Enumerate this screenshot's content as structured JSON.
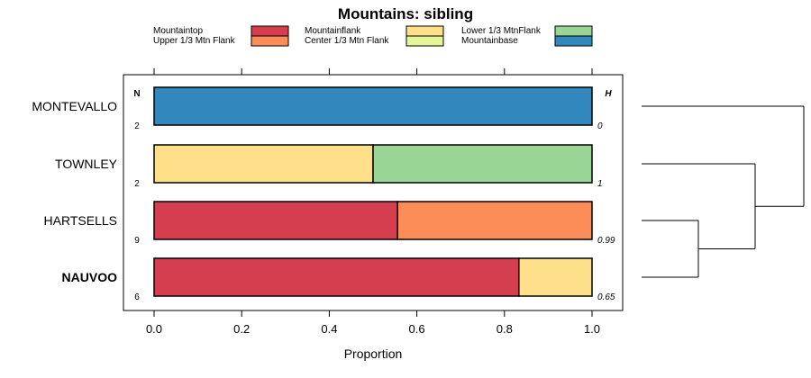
{
  "chart_data": {
    "type": "bar",
    "orientation": "horizontal",
    "stacked": true,
    "title": "Mountains: sibling",
    "xlabel": "Proportion",
    "ylabel": "",
    "xlim": [
      0,
      1
    ],
    "xticks": [
      "0.0",
      "0.2",
      "0.4",
      "0.6",
      "0.8",
      "1.0"
    ],
    "xtick_values": [
      0,
      0.2,
      0.4,
      0.6,
      0.8,
      1.0
    ],
    "n_header": "N",
    "h_header": "H",
    "legend": [
      {
        "name": "Mountaintop",
        "color": "#d53e4f"
      },
      {
        "name": "Upper 1/3 Mtn Flank",
        "color": "#fc8d59"
      },
      {
        "name": "Mountainflank",
        "color": "#fee08b"
      },
      {
        "name": "Center 1/3 Mtn Flank",
        "color": "#e6f598"
      },
      {
        "name": "Lower 1/3 MtnFlank",
        "color": "#99d594"
      },
      {
        "name": "Mountainbase",
        "color": "#3288bd"
      }
    ],
    "categories": [
      {
        "name": "MONTEVALLO",
        "n": "2",
        "h": "0",
        "bold": false,
        "segments": [
          {
            "series": "Mountainbase",
            "value": 1.0
          }
        ]
      },
      {
        "name": "TOWNLEY",
        "n": "2",
        "h": "1",
        "bold": false,
        "segments": [
          {
            "series": "Mountainflank",
            "value": 0.5
          },
          {
            "series": "Lower 1/3 MtnFlank",
            "value": 0.5
          }
        ]
      },
      {
        "name": "HARTSELLS",
        "n": "9",
        "h": "0.99",
        "bold": false,
        "segments": [
          {
            "series": "Mountaintop",
            "value": 0.556
          },
          {
            "series": "Upper 1/3 Mtn Flank",
            "value": 0.444
          }
        ]
      },
      {
        "name": "NAUVOO",
        "n": "6",
        "h": "0.65",
        "bold": true,
        "segments": [
          {
            "series": "Mountaintop",
            "value": 0.833
          },
          {
            "series": "Mountainflank",
            "value": 0.167
          }
        ]
      }
    ],
    "dendrogram": {
      "merges": [
        {
          "left": "HARTSELLS",
          "right": "NAUVOO",
          "height": 0.35
        },
        {
          "left": "TOWNLEY",
          "right": "HARTSELLS+NAUVOO",
          "height": 0.7
        },
        {
          "left": "MONTEVALLO",
          "right": "TOWNLEY+HARTSELLS+NAUVOO",
          "height": 1.0
        }
      ]
    }
  }
}
